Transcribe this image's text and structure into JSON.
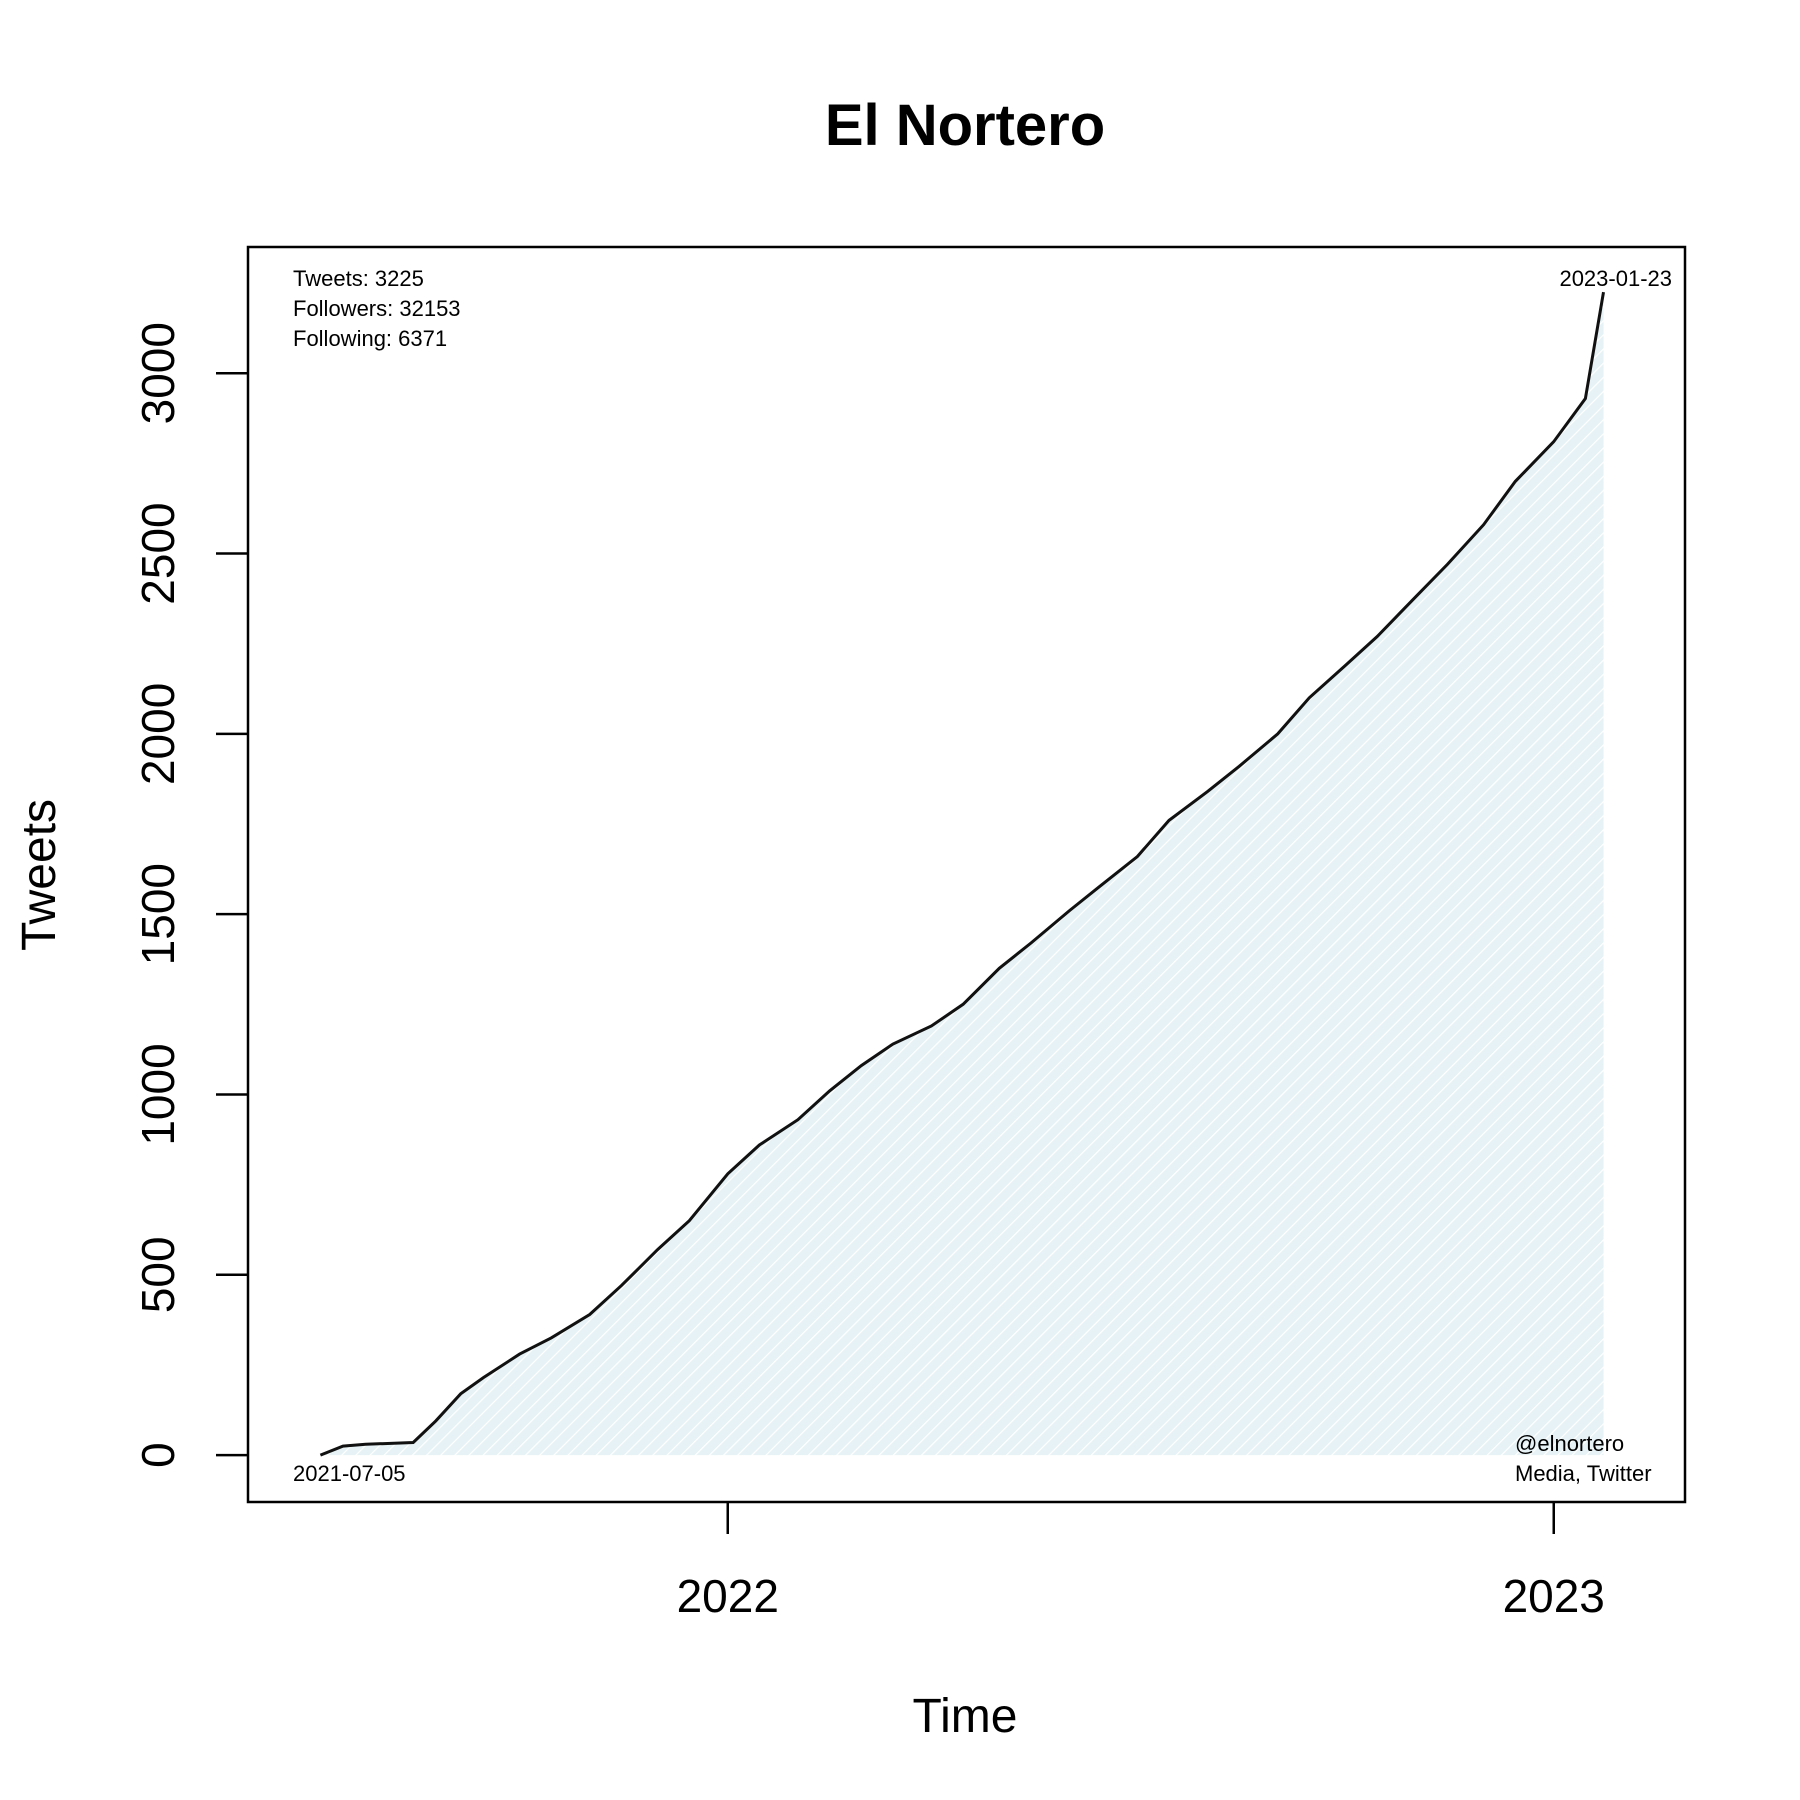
{
  "chart_data": {
    "type": "area",
    "title": "El Nortero",
    "xlabel": "Time",
    "ylabel": "Tweets",
    "ylim": [
      -130,
      3350
    ],
    "xlim": [
      "2021-06-03",
      "2023-02-28"
    ],
    "y_ticks": [
      0,
      500,
      1000,
      1500,
      2000,
      2500,
      3000
    ],
    "y_tick_labels": [
      "0",
      "500",
      "1000",
      "1500",
      "2000",
      "2500",
      "3000"
    ],
    "x_ticks": [
      "2022-01-01",
      "2023-01-01"
    ],
    "x_tick_labels": [
      "2022",
      "2023"
    ],
    "start_label": "2021-07-05",
    "end_label": "2023-01-23",
    "stats": {
      "tweets": "Tweets: 3225",
      "followers": "Followers: 32153",
      "following": "Following: 6371"
    },
    "credit": {
      "handle": "@elnortero",
      "source": "Media, Twitter"
    },
    "fill_color": "#e6f2f5",
    "line_color": "#111111",
    "series": [
      {
        "name": "Tweets",
        "x": [
          "2021-07-05",
          "2021-07-15",
          "2021-07-25",
          "2021-08-15",
          "2021-08-25",
          "2021-09-05",
          "2021-09-15",
          "2021-10-01",
          "2021-10-15",
          "2021-11-01",
          "2021-11-15",
          "2021-12-01",
          "2021-12-15",
          "2022-01-01",
          "2022-01-15",
          "2022-02-01",
          "2022-02-15",
          "2022-03-01",
          "2022-03-15",
          "2022-04-01",
          "2022-04-15",
          "2022-05-01",
          "2022-05-15",
          "2022-06-01",
          "2022-06-15",
          "2022-07-01",
          "2022-07-15",
          "2022-08-01",
          "2022-08-15",
          "2022-09-01",
          "2022-09-15",
          "2022-10-01",
          "2022-10-15",
          "2022-11-01",
          "2022-11-15",
          "2022-12-01",
          "2022-12-15",
          "2023-01-01",
          "2023-01-15",
          "2023-01-23"
        ],
        "y": [
          0,
          25,
          30,
          35,
          95,
          170,
          215,
          280,
          325,
          390,
          470,
          570,
          650,
          780,
          860,
          930,
          1010,
          1080,
          1140,
          1190,
          1250,
          1350,
          1420,
          1510,
          1580,
          1660,
          1760,
          1840,
          1910,
          2000,
          2100,
          2190,
          2270,
          2380,
          2470,
          2580,
          2700,
          2810,
          2930,
          3225
        ]
      }
    ]
  }
}
